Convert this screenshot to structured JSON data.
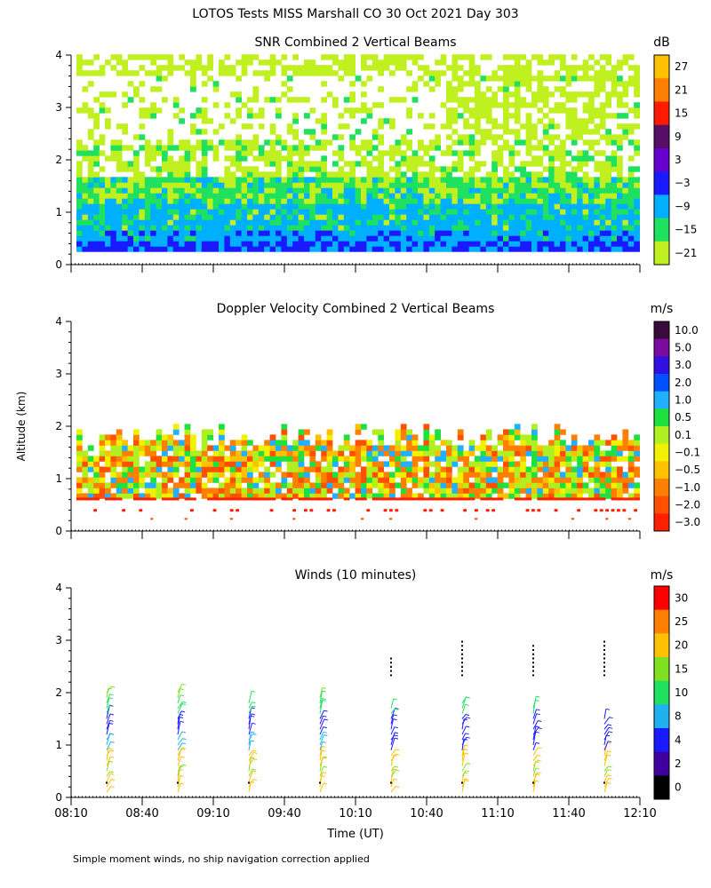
{
  "figure": {
    "title": "LOTOS Tests MISS Marshall CO  30 Oct 2021 Day 303",
    "ylabel": "Altitude (km)",
    "xlabel": "Time (UT)",
    "footnote": "Simple moment winds, no ship navigation correction applied",
    "xticks": [
      "08:10",
      "08:40",
      "09:10",
      "09:40",
      "10:10",
      "10:40",
      "11:10",
      "11:40",
      "12:10"
    ],
    "yticks": [
      "0",
      "1",
      "2",
      "3",
      "4"
    ]
  },
  "chart_data": [
    {
      "type": "heatmap",
      "id": "snr",
      "title": "SNR Combined 2 Vertical Beams",
      "unit": "dB",
      "xlim": [
        "08:10",
        "12:10"
      ],
      "ylim": [
        0,
        4
      ],
      "colorbar_ticks": [
        "27",
        "21",
        "15",
        "9",
        "3",
        "−3",
        "−9",
        "−15",
        "−21"
      ],
      "colorbar_colors": [
        "#ffc000",
        "#ff7f00",
        "#ff1a00",
        "#551066",
        "#6600cc",
        "#1a1aff",
        "#00b0ff",
        "#20e060",
        "#c0f020"
      ]
    },
    {
      "type": "heatmap",
      "id": "doppler",
      "title": "Doppler Velocity Combined 2 Vertical Beams",
      "unit": "m/s",
      "xlim": [
        "08:10",
        "12:10"
      ],
      "ylim": [
        0,
        4
      ],
      "colorbar_ticks": [
        "10.0",
        "5.0",
        "3.0",
        "2.0",
        "1.0",
        "0.5",
        "0.1",
        "−0.1",
        "−0.5",
        "−1.0",
        "−2.0",
        "−3.0"
      ],
      "colorbar_colors": [
        "#3a0a3a",
        "#7a0aa0",
        "#3010e0",
        "#0050ff",
        "#20b0ff",
        "#20e040",
        "#b0f020",
        "#f0f000",
        "#ffc000",
        "#ff8000",
        "#ff5000",
        "#ff2000"
      ]
    },
    {
      "type": "scatter",
      "id": "winds",
      "title": "Winds (10 minutes)",
      "unit": "m/s",
      "xlim": [
        "08:10",
        "12:10"
      ],
      "ylim": [
        0,
        4
      ],
      "colorbar_ticks": [
        "30",
        "25",
        "20",
        "15",
        "10",
        "8",
        "4",
        "2",
        "0"
      ],
      "colorbar_colors": [
        "#ff0000",
        "#ff8000",
        "#ffc000",
        "#80e020",
        "#20e060",
        "#20b0f0",
        "#1a1aff",
        "#4000a0",
        "#000000"
      ],
      "profiles": [
        {
          "time": "08:25",
          "top_km": 2.1
        },
        {
          "time": "08:55",
          "top_km": 2.05
        },
        {
          "time": "09:25",
          "top_km": 1.85
        },
        {
          "time": "09:55",
          "top_km": 1.95
        },
        {
          "time": "10:25",
          "top_km": 1.8
        },
        {
          "time": "10:55",
          "top_km": 1.9
        },
        {
          "time": "11:25",
          "top_km": 1.8
        },
        {
          "time": "11:55",
          "top_km": 1.6
        }
      ]
    }
  ]
}
